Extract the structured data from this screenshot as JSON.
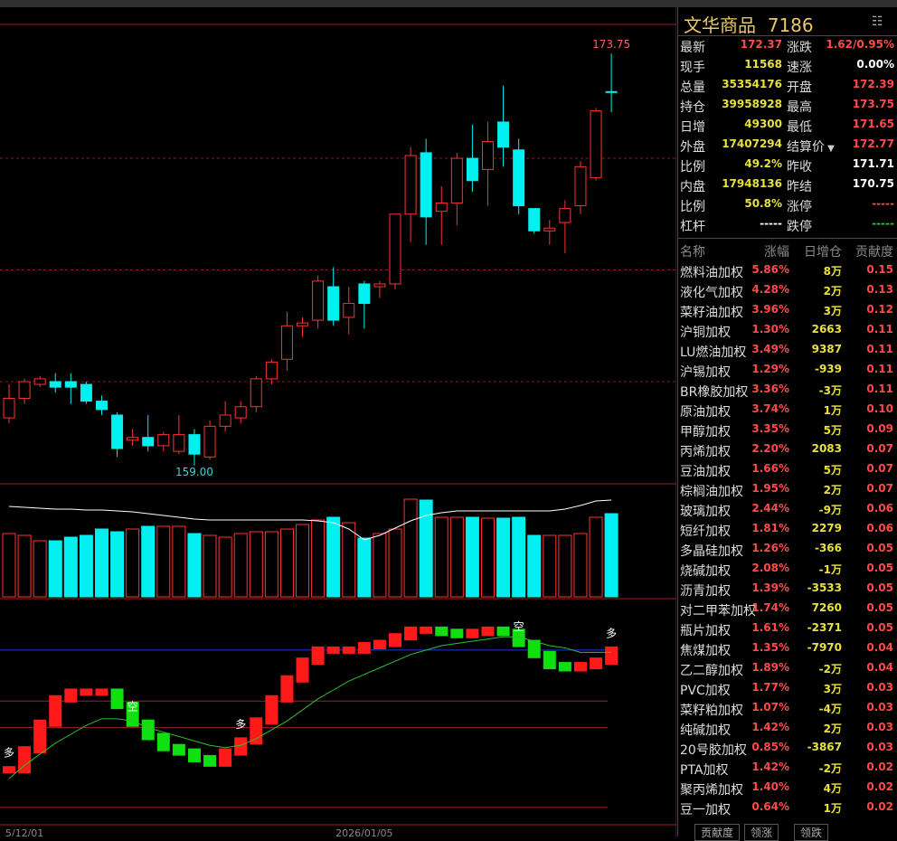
{
  "chart_data": {
    "type": "candlestick",
    "open": [
      160.7,
      161.4,
      161.9,
      162.0,
      162.0,
      161.9,
      161.3,
      160.8,
      159.9,
      160.0,
      159.7,
      159.5,
      160.1,
      159.3,
      160.4,
      160.7,
      161.1,
      162.1,
      162.8,
      164.0,
      164.2,
      165.4,
      164.3,
      165.5,
      165.4,
      165.5,
      168.0,
      170.2,
      168.1,
      168.4,
      170.0,
      169.6,
      171.3,
      170.3,
      168.2,
      167.4,
      167.7,
      168.3,
      169.3,
      172.39
    ],
    "high": [
      161.9,
      162.1,
      162.2,
      162.3,
      162.3,
      162.0,
      161.5,
      160.9,
      160.3,
      160.8,
      160.2,
      160.8,
      160.3,
      160.6,
      161.3,
      161.3,
      162.2,
      162.8,
      164.5,
      164.3,
      165.8,
      166.1,
      165.4,
      165.6,
      165.6,
      168.0,
      170.4,
      170.7,
      169.0,
      170.2,
      171.2,
      171.3,
      172.6,
      170.7,
      168.2,
      167.8,
      168.5,
      169.9,
      171.8,
      173.75
    ],
    "low": [
      160.5,
      161.2,
      161.8,
      161.6,
      161.2,
      161.2,
      160.8,
      159.3,
      159.7,
      159.5,
      159.5,
      159.4,
      159.0,
      159.2,
      160.2,
      160.5,
      160.9,
      161.9,
      162.4,
      163.6,
      163.9,
      164.0,
      163.7,
      163.9,
      165.0,
      165.3,
      167.0,
      166.9,
      166.9,
      167.6,
      168.8,
      168.3,
      169.7,
      168.0,
      167.3,
      166.9,
      166.6,
      168.0,
      169.2,
      171.65
    ],
    "close": [
      161.4,
      162.0,
      162.1,
      161.8,
      161.8,
      161.3,
      161.0,
      159.6,
      160.0,
      159.7,
      160.1,
      160.1,
      159.4,
      160.4,
      160.8,
      161.1,
      162.1,
      162.7,
      164.0,
      164.1,
      165.6,
      164.2,
      164.8,
      164.8,
      165.5,
      168.0,
      170.1,
      167.9,
      168.4,
      170.0,
      169.2,
      170.6,
      170.4,
      168.3,
      167.4,
      167.5,
      168.2,
      169.7,
      171.7,
      172.37
    ],
    "ylim": [
      158.5,
      174.7
    ],
    "grid_lines": [
      162,
      166,
      170
    ],
    "annotations": [
      {
        "label": "173.75",
        "value": 173.75
      },
      {
        "label": "159.00",
        "value": 159
      }
    ],
    "volume": {
      "values": [
        70,
        68,
        62,
        62,
        66,
        68,
        75,
        72,
        75,
        78,
        78,
        78,
        70,
        68,
        66,
        70,
        72,
        72,
        75,
        80,
        85,
        88,
        82,
        65,
        70,
        75,
        108,
        107,
        88,
        88,
        88,
        87,
        87,
        88,
        68,
        68,
        68,
        70,
        88,
        92
      ],
      "ma": [
        100,
        99,
        98,
        97,
        97,
        96,
        96,
        95,
        94,
        92,
        90,
        88,
        86,
        85,
        85,
        85,
        85,
        85,
        85,
        85,
        84,
        82,
        75,
        63,
        68,
        76,
        84,
        90,
        93,
        95,
        95,
        95,
        95,
        95,
        95,
        95,
        97,
        101,
        106,
        107
      ],
      "ylim": [
        0,
        120
      ]
    },
    "signal": {
      "values": [
        24,
        33,
        45,
        56,
        59,
        59,
        59,
        53,
        45,
        39,
        34,
        32,
        29,
        27,
        32,
        37,
        46,
        56,
        65,
        73,
        78,
        78,
        78,
        80,
        81,
        84,
        87,
        87,
        86,
        85,
        86,
        87,
        86,
        81,
        76,
        71,
        70,
        71,
        73,
        78
      ],
      "line": [
        20,
        26,
        31,
        36,
        40,
        44,
        47,
        47,
        46,
        43,
        41,
        39,
        37,
        35,
        34,
        35,
        38,
        42,
        46,
        51,
        56,
        60,
        64,
        67,
        70,
        73,
        76,
        78,
        80,
        81,
        82,
        83,
        84,
        84,
        82,
        80,
        79,
        77,
        77,
        77
      ],
      "marks": [
        "多",
        null,
        null,
        null,
        null,
        null,
        null,
        null,
        "空",
        null,
        null,
        null,
        null,
        null,
        null,
        "多",
        null,
        null,
        null,
        null,
        null,
        null,
        null,
        null,
        null,
        null,
        null,
        null,
        null,
        null,
        null,
        null,
        null,
        "空",
        null,
        null,
        null,
        null,
        null,
        "多"
      ],
      "levels": [
        {
          "value": 78,
          "color": "#2233dd"
        },
        {
          "value": 55,
          "color": "#a02020"
        },
        {
          "value": 43,
          "color": "#a02020"
        },
        {
          "value": 7,
          "color": "#a02020"
        }
      ],
      "ylim": [
        0,
        100
      ]
    },
    "x_labels": [
      null,
      "5/12/01",
      null,
      null,
      null,
      null,
      null,
      null,
      null,
      null,
      null,
      null,
      null,
      null,
      null,
      null,
      null,
      null,
      null,
      null,
      null,
      null,
      null,
      "2026/01/05",
      null,
      null,
      null,
      null,
      null,
      null,
      null,
      null,
      null,
      null,
      null,
      null,
      null,
      null,
      null,
      null
    ]
  },
  "header": {
    "title": "文华商品",
    "code": "7186"
  },
  "quote": [
    [
      {
        "label": "最新",
        "value": "172.37",
        "color": "red"
      },
      {
        "label": "涨跌",
        "value": "1.62/0.95%",
        "color": "red"
      }
    ],
    [
      {
        "label": "现手",
        "value": "11568",
        "color": "yellow"
      },
      {
        "label": "速涨",
        "value": "0.00%",
        "color": "white"
      }
    ],
    [
      {
        "label": "总量",
        "value": "35354176",
        "color": "yellow"
      },
      {
        "label": "开盘",
        "value": "172.39",
        "color": "red"
      }
    ],
    [
      {
        "label": "持仓",
        "value": "39958928",
        "color": "yellow"
      },
      {
        "label": "最高",
        "value": "173.75",
        "color": "red"
      }
    ],
    [
      {
        "label": "日增",
        "value": "49300",
        "color": "yellow"
      },
      {
        "label": "最低",
        "value": "171.65",
        "color": "red"
      }
    ],
    [
      {
        "label": "外盘",
        "value": "17407294",
        "color": "yellow"
      },
      {
        "label": "结算价",
        "value": "172.77",
        "color": "red"
      }
    ],
    [
      {
        "label": "比例",
        "value": "49.2%",
        "color": "yellow"
      },
      {
        "label": "昨收",
        "value": "171.71",
        "color": "white"
      }
    ],
    [
      {
        "label": "内盘",
        "value": "17948136",
        "color": "yellow"
      },
      {
        "label": "昨结",
        "value": "170.75",
        "color": "white"
      }
    ],
    [
      {
        "label": "比例",
        "value": "50.8%",
        "color": "yellow"
      },
      {
        "label": "涨停",
        "value": "-----",
        "color": "red"
      }
    ],
    [
      {
        "label": "杠杆",
        "value": "-----",
        "color": "white"
      },
      {
        "label": "跌停",
        "value": "-----",
        "color": "green"
      }
    ]
  ],
  "table": {
    "columns": [
      "名称",
      "涨幅",
      "日增仓",
      "贡献度"
    ],
    "rows": [
      [
        "燃料油加权",
        "5.86%",
        "8万",
        "0.15"
      ],
      [
        "液化气加权",
        "4.28%",
        "2万",
        "0.13"
      ],
      [
        "菜籽油加权",
        "3.96%",
        "3万",
        "0.12"
      ],
      [
        "沪铜加权",
        "1.30%",
        "2663",
        "0.11"
      ],
      [
        "LU燃油加权",
        "3.49%",
        "9387",
        "0.11"
      ],
      [
        "沪锡加权",
        "1.29%",
        "-939",
        "0.11"
      ],
      [
        "BR橡胶加权",
        "3.36%",
        "-3万",
        "0.11"
      ],
      [
        "原油加权",
        "3.74%",
        "1万",
        "0.10"
      ],
      [
        "甲醇加权",
        "3.35%",
        "5万",
        "0.09"
      ],
      [
        "丙烯加权",
        "2.20%",
        "2083",
        "0.07"
      ],
      [
        "豆油加权",
        "1.66%",
        "5万",
        "0.07"
      ],
      [
        "棕榈油加权",
        "1.95%",
        "2万",
        "0.07"
      ],
      [
        "玻璃加权",
        "2.44%",
        "-9万",
        "0.06"
      ],
      [
        "短纤加权",
        "1.81%",
        "2279",
        "0.06"
      ],
      [
        "多晶硅加权",
        "1.26%",
        "-366",
        "0.05"
      ],
      [
        "烧碱加权",
        "2.08%",
        "-1万",
        "0.05"
      ],
      [
        "沥青加权",
        "1.39%",
        "-3533",
        "0.05"
      ],
      [
        "对二甲苯加权",
        "1.74%",
        "7260",
        "0.05"
      ],
      [
        "瓶片加权",
        "1.61%",
        "-2371",
        "0.05"
      ],
      [
        "焦煤加权",
        "1.35%",
        "-7970",
        "0.04"
      ],
      [
        "乙二醇加权",
        "1.89%",
        "-2万",
        "0.04"
      ],
      [
        "PVC加权",
        "1.77%",
        "3万",
        "0.03"
      ],
      [
        "菜籽粕加权",
        "1.07%",
        "-4万",
        "0.03"
      ],
      [
        "纯碱加权",
        "1.42%",
        "2万",
        "0.03"
      ],
      [
        "20号胶加权",
        "0.85%",
        "-3867",
        "0.03"
      ],
      [
        "PTA加权",
        "1.42%",
        "-2万",
        "0.02"
      ],
      [
        "聚丙烯加权",
        "1.40%",
        "4万",
        "0.02"
      ],
      [
        "豆一加权",
        "0.64%",
        "1万",
        "0.02"
      ]
    ]
  },
  "tabs": [
    "贡献度",
    "领涨",
    "领跌"
  ]
}
